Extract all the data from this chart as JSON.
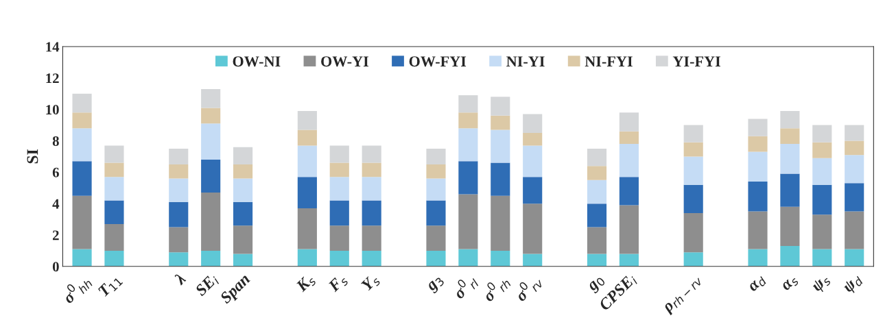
{
  "chart_data": {
    "type": "bar",
    "stacked": true,
    "ylabel": "SI",
    "categories": [
      "σ$^{0}$$_{hh}$",
      "T$_{11}$",
      null,
      "λ",
      "SE$_{i}$",
      "Span",
      null,
      "K$_{s}$",
      "F$_{s}$",
      "Y$_{s}$",
      null,
      "g$_{3}$",
      "σ$^{0}$$_{rl}$",
      "σ$^{0}$$_{rh}$",
      "σ$^{0}$$_{rv}$",
      null,
      "g$_{0}$",
      "CPSE$_{i}$",
      null,
      "ρ$_{rh−rv}$",
      null,
      "α$_{d}$",
      "α$_{s}$",
      "ψ$_{s}$",
      "ψ$_{d}$"
    ],
    "series": [
      {
        "name": "OW-NI",
        "color": "#5ec8d6",
        "values": [
          1.1,
          1.0,
          null,
          0.9,
          1.0,
          0.8,
          null,
          1.1,
          1.0,
          1.0,
          null,
          1.0,
          1.1,
          1.0,
          0.8,
          null,
          0.8,
          0.8,
          null,
          0.9,
          null,
          1.1,
          1.3,
          1.1,
          1.1
        ]
      },
      {
        "name": "OW-YI",
        "color": "#8e8e8e",
        "values": [
          3.4,
          1.7,
          null,
          1.6,
          3.7,
          1.8,
          null,
          2.6,
          1.6,
          1.6,
          null,
          1.6,
          3.5,
          3.5,
          3.2,
          null,
          1.7,
          3.1,
          null,
          2.5,
          null,
          2.4,
          2.5,
          2.2,
          2.4
        ]
      },
      {
        "name": "OW-FYI",
        "color": "#2f6db5",
        "values": [
          2.2,
          1.5,
          null,
          1.6,
          2.1,
          1.5,
          null,
          2.0,
          1.6,
          1.6,
          null,
          1.6,
          2.1,
          2.1,
          1.7,
          null,
          1.5,
          1.8,
          null,
          1.8,
          null,
          1.9,
          2.1,
          1.9,
          1.8
        ]
      },
      {
        "name": "NI-YI",
        "color": "#c5dcf5",
        "values": [
          2.1,
          1.5,
          null,
          1.5,
          2.3,
          1.5,
          null,
          2.0,
          1.5,
          1.5,
          null,
          1.4,
          2.1,
          2.1,
          2.0,
          null,
          1.5,
          2.1,
          null,
          1.8,
          null,
          1.9,
          1.9,
          1.7,
          1.8
        ]
      },
      {
        "name": "NI-FYI",
        "color": "#dcc9a6",
        "values": [
          1.0,
          0.9,
          null,
          0.9,
          1.0,
          0.9,
          null,
          1.0,
          0.9,
          0.9,
          null,
          0.9,
          1.0,
          0.9,
          0.8,
          null,
          0.9,
          0.8,
          null,
          0.9,
          null,
          1.0,
          1.0,
          1.0,
          0.9
        ]
      },
      {
        "name": "YI-FYI",
        "color": "#d4d6d8",
        "values": [
          1.2,
          1.1,
          null,
          1.0,
          1.2,
          1.1,
          null,
          1.2,
          1.1,
          1.1,
          null,
          1.0,
          1.1,
          1.2,
          1.2,
          null,
          1.1,
          1.2,
          null,
          1.1,
          null,
          1.1,
          1.1,
          1.1,
          1.0
        ]
      }
    ],
    "ylim": [
      0,
      14
    ],
    "yticks": [
      0,
      2,
      4,
      6,
      8,
      10,
      12,
      14
    ],
    "legend": "top",
    "grid": false
  }
}
